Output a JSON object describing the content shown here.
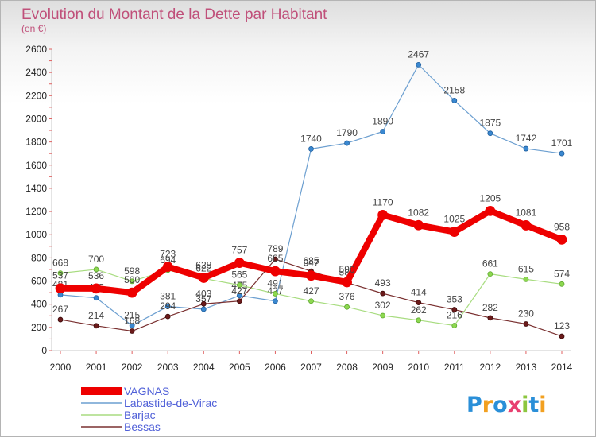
{
  "chart_data": {
    "type": "line",
    "title": "Evolution du Montant de la Dette par Habitant",
    "subtitle": "(en €)",
    "x": [
      "2000",
      "2001",
      "2002",
      "2003",
      "2004",
      "2005",
      "2006",
      "2007",
      "2008",
      "2009",
      "2010",
      "2011",
      "2012",
      "2013",
      "2014"
    ],
    "ylim": [
      0,
      2600
    ],
    "yticks": [
      0,
      200,
      400,
      600,
      800,
      1000,
      1200,
      1400,
      1600,
      1800,
      2000,
      2200,
      2400,
      2600
    ],
    "grid": false,
    "legend_position": "bottom-left",
    "series": [
      {
        "name": "VAGNAS",
        "color": "#ee0000",
        "values": [
          537,
          536,
          500,
          723,
          628,
          757,
          685,
          647,
          590,
          1170,
          1082,
          1025,
          1205,
          1081,
          958
        ]
      },
      {
        "name": "Labastide-de-Virac",
        "color": "#6c9fd0",
        "values": [
          481,
          455,
          215,
          381,
          357,
          475,
          427,
          1740,
          1790,
          1890,
          2467,
          2158,
          1875,
          1742,
          1701
        ]
      },
      {
        "name": "Barjac",
        "color": "#a8dc80",
        "values": [
          668,
          700,
          598,
          694,
          622,
          565,
          491,
          427,
          376,
          302,
          262,
          216,
          661,
          615,
          574
        ]
      },
      {
        "name": "Bessas",
        "color": "#7a3030",
        "values": [
          267,
          214,
          168,
          294,
          403,
          427,
          789,
          685,
          586,
          493,
          414,
          353,
          282,
          230,
          123
        ]
      }
    ]
  },
  "logo": {
    "letters": [
      "P",
      "r",
      "o",
      "x",
      "i",
      "t",
      "i"
    ],
    "colors": [
      "#2a8fd8",
      "#f2a020",
      "#2a8fd8",
      "#e84070",
      "#8cc63f",
      "#2a8fd8",
      "#f2a020"
    ]
  }
}
